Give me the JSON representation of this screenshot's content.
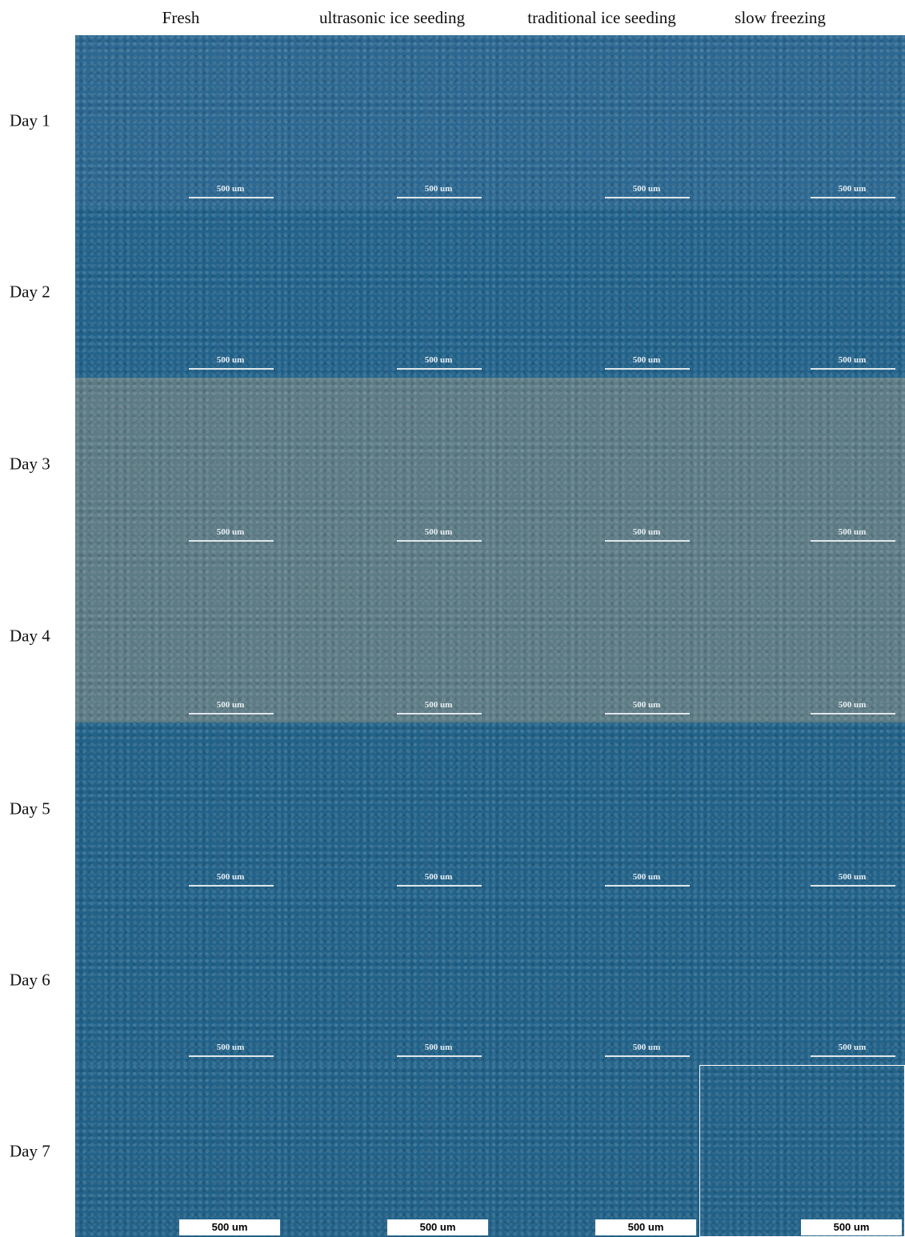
{
  "columns": [
    "Fresh",
    "ultrasonic ice seeding",
    "traditional ice seeding",
    "slow freezing"
  ],
  "rows": [
    {
      "label": "Day 1",
      "scale_labels": [
        "500 um",
        "500 um",
        "500 um",
        "500 um"
      ]
    },
    {
      "label": "Day 2",
      "scale_labels": [
        "500 um",
        "500 um",
        "500 um",
        "500 um"
      ]
    },
    {
      "label": "Day 3",
      "scale_labels": [
        "500 um",
        "500 um",
        "500 um",
        "500 um"
      ]
    },
    {
      "label": "Day 4",
      "scale_labels": [
        "500 um",
        "500 um",
        "500 um",
        "500 um"
      ]
    },
    {
      "label": "Day 5",
      "scale_labels": [
        "500 um",
        "500 um",
        "500 um",
        "500 um"
      ]
    },
    {
      "label": "Day 6",
      "scale_labels": [
        "500 um",
        "500 um",
        "500 um",
        "500 um"
      ]
    },
    {
      "label": "Day 7",
      "scale_labels": [
        "500 um",
        "500 um",
        "500 um",
        "500 um"
      ]
    }
  ]
}
